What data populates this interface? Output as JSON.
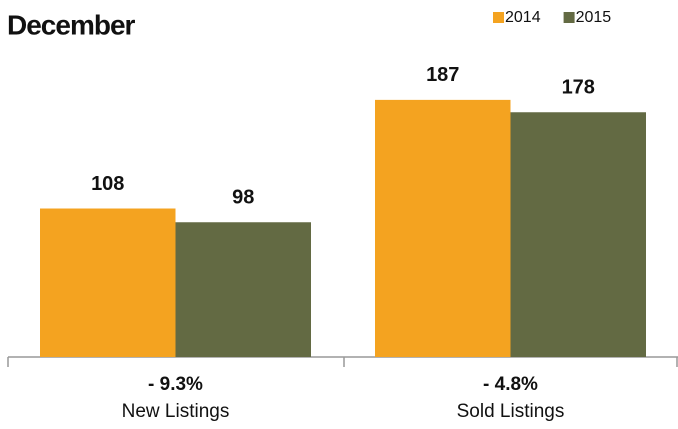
{
  "chart_data": {
    "type": "bar",
    "title": "December",
    "categories": [
      "New Listings",
      "Sold Listings"
    ],
    "annotations": [
      "- 9.3%",
      "- 4.8%"
    ],
    "series": [
      {
        "name": "2014",
        "color": "#f4a320",
        "values": [
          108,
          187
        ]
      },
      {
        "name": "2015",
        "color": "#636a43",
        "values": [
          98,
          178
        ]
      }
    ],
    "ylim": [
      0,
      200
    ],
    "legend": "top-right"
  }
}
